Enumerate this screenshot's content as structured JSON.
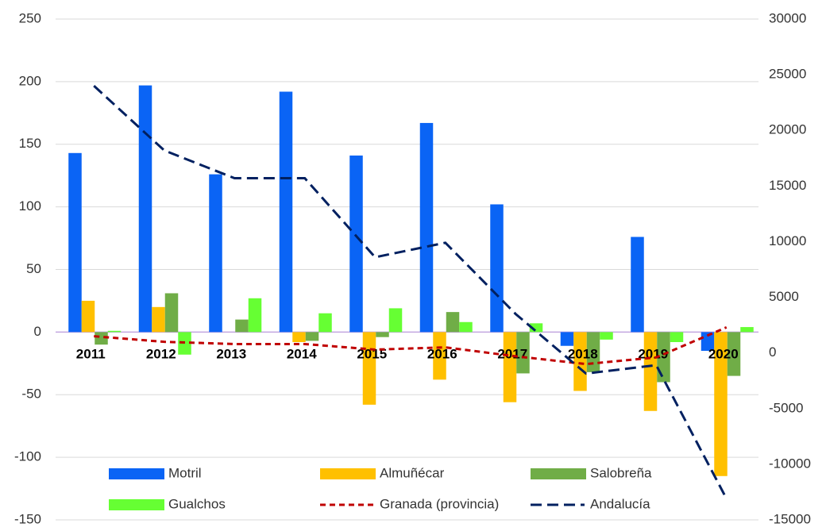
{
  "chart_data": {
    "type": "bar",
    "categories": [
      "2011",
      "2012",
      "2013",
      "2014",
      "2015",
      "2016",
      "2017",
      "2018",
      "2019",
      "2020"
    ],
    "series": [
      {
        "name": "Motril",
        "color": "#0a64f5",
        "type": "bar",
        "values": [
          143,
          197,
          126,
          192,
          141,
          167,
          102,
          -11,
          76,
          -15
        ]
      },
      {
        "name": "Almuñécar",
        "color": "#ffc000",
        "type": "bar",
        "values": [
          25,
          20,
          0,
          -8,
          -58,
          -38,
          -56,
          -47,
          -63,
          -115
        ]
      },
      {
        "name": "Salobreña",
        "color": "#70ad47",
        "type": "bar",
        "values": [
          -10,
          31,
          10,
          -7,
          -4,
          16,
          -33,
          -32,
          -40,
          -35
        ]
      },
      {
        "name": "Gualchos",
        "color": "#66ff33",
        "type": "bar",
        "values": [
          1,
          -18,
          27,
          15,
          19,
          8,
          7,
          -6,
          -8,
          4
        ]
      },
      {
        "name": "Granada (provincia)",
        "color": "#c00000",
        "type": "line",
        "axis": "y2",
        "values": [
          1500,
          1000,
          800,
          800,
          300,
          500,
          -300,
          -1000,
          -400,
          2300
        ]
      },
      {
        "name": "Andalucía",
        "color": "#002060",
        "type": "line",
        "axis": "y2",
        "values": [
          24000,
          18200,
          15700,
          15700,
          8600,
          9900,
          3500,
          -1850,
          -1100,
          -13100
        ]
      }
    ],
    "ylim": [
      -150,
      250
    ],
    "yticks": [
      -150,
      -100,
      -50,
      0,
      50,
      100,
      150,
      200,
      250
    ],
    "y2lim": [
      -15000,
      30000
    ],
    "y2ticks": [
      -15000,
      -10000,
      -5000,
      0,
      5000,
      10000,
      15000,
      20000,
      25000,
      30000
    ],
    "grid": true,
    "legend": "bottom"
  }
}
